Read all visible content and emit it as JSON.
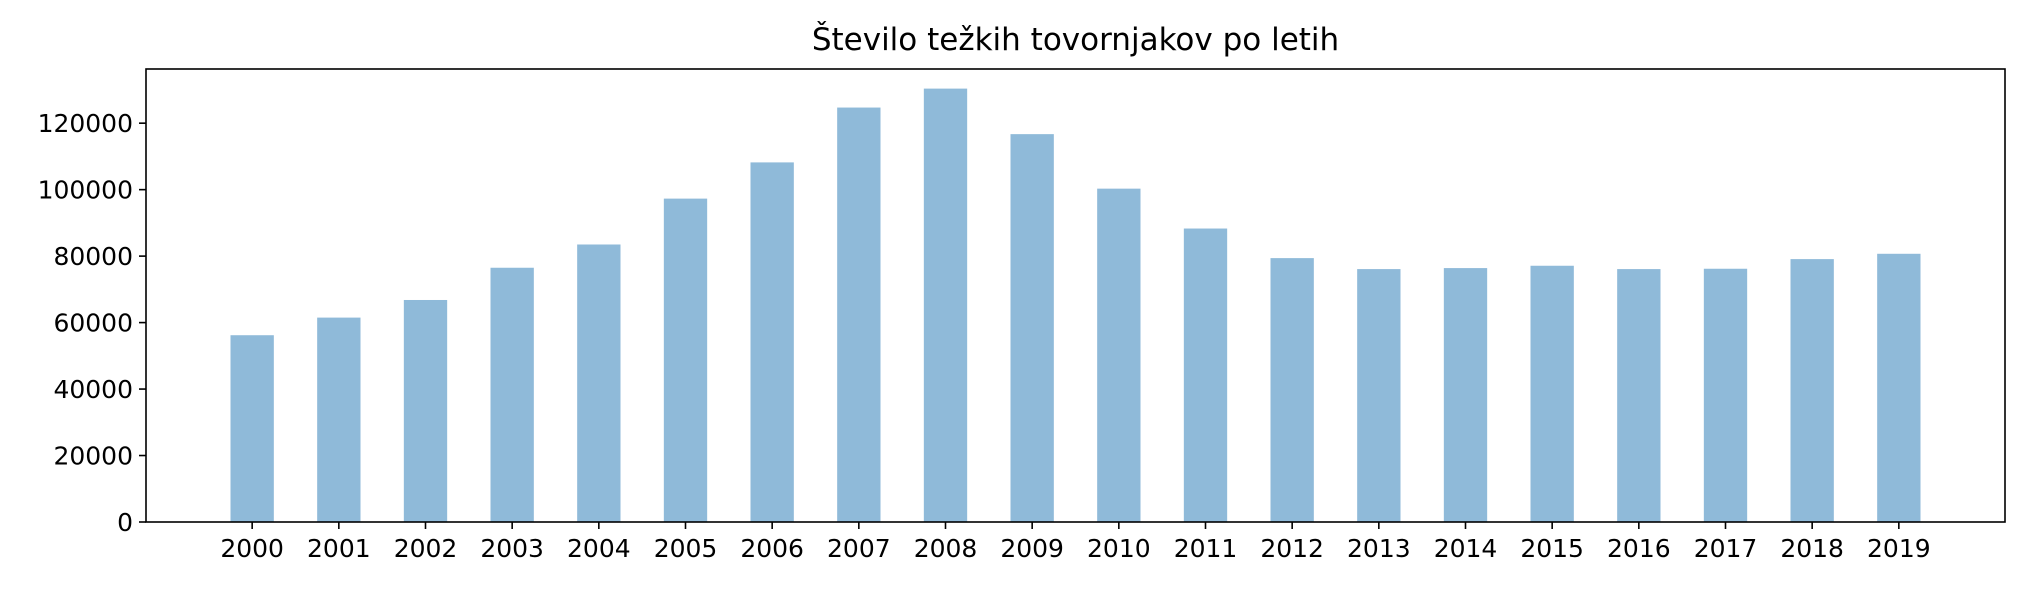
{
  "chart_data": {
    "type": "bar",
    "title": "Število težkih tovornjakov po letih",
    "xlabel": "",
    "ylabel": "",
    "categories": [
      "2000",
      "2001",
      "2002",
      "2003",
      "2004",
      "2005",
      "2006",
      "2007",
      "2008",
      "2009",
      "2010",
      "2011",
      "2012",
      "2013",
      "2014",
      "2015",
      "2016",
      "2017",
      "2018",
      "2019"
    ],
    "values": [
      56200,
      61500,
      66800,
      76500,
      83500,
      97300,
      108200,
      124700,
      130400,
      116700,
      100300,
      88300,
      79400,
      76100,
      76400,
      77100,
      76100,
      76200,
      79100,
      80700
    ],
    "ylim": [
      0,
      136300
    ],
    "yticks": [
      0,
      20000,
      40000,
      60000,
      80000,
      100000,
      120000
    ],
    "bar_color": "#8fbad9",
    "grid": false,
    "legend": false
  }
}
